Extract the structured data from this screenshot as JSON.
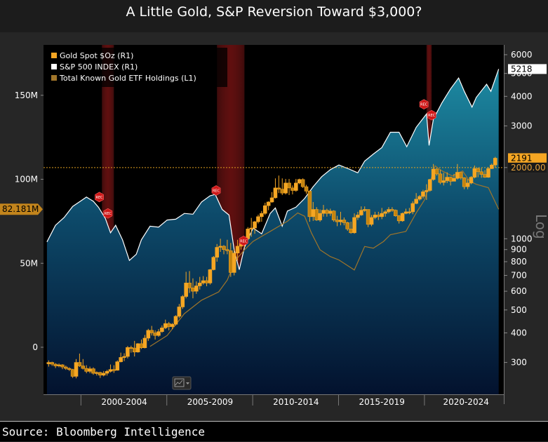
{
  "title": "A Little Gold, S&P Reversion Toward $3,000?",
  "source": "Source: Bloomberg Intelligence",
  "colors": {
    "gold": "#f5a623",
    "sp_line": "#ffffff",
    "etf": "#a0752a",
    "recession": "#8b1a1a",
    "bg": "#000000"
  },
  "icons": {
    "chart_type_button": "chart-type-icon"
  },
  "chart_data": {
    "type": "candlestick",
    "recession_label": "REC",
    "legend": [
      {
        "name": "Gold Spot $Oz (R1)",
        "color": "#f5a623"
      },
      {
        "name": "S&P 500 INDEX (R1)",
        "color": "#ffffff"
      },
      {
        "name": "Total Known Gold ETF Holdings (L1)",
        "color": "#a0752a"
      }
    ],
    "left_axis": {
      "ticks": [
        "150M",
        "100M",
        "50M",
        "0"
      ],
      "values": [
        150,
        100,
        50,
        0
      ],
      "range": [
        -28,
        180
      ],
      "highlight": "82.181M",
      "highlight_value": 82.181
    },
    "right_axis": {
      "scale": "log",
      "label": "Log",
      "ticks": [
        "6000",
        "5000",
        "4000",
        "3000",
        "2000.00",
        "1000",
        "900",
        "800",
        "700",
        "600",
        "500",
        "400",
        "300"
      ],
      "values": [
        6000,
        5000,
        4000,
        3000,
        2000,
        1000,
        900,
        800,
        700,
        600,
        500,
        400,
        300
      ],
      "range": [
        220,
        6600
      ],
      "markers": {
        "sp_last": "5218",
        "sp_last_value": 5218,
        "gold_last": "2191",
        "gold_last_value": 2191,
        "ref": "2000.00",
        "ref_value": 2000
      }
    },
    "x_axis": {
      "labels": [
        "2000-2004",
        "2005-2009",
        "2010-2014",
        "2015-2019",
        "2020-2024"
      ],
      "range": [
        1997.8,
        2024.6
      ]
    },
    "recessions": [
      [
        2001.2,
        2001.9
      ],
      [
        2007.9,
        2009.5
      ],
      [
        2020.1,
        2020.4
      ]
    ],
    "sp500": [
      [
        1998.0,
        970
      ],
      [
        1998.5,
        1140
      ],
      [
        1999.0,
        1230
      ],
      [
        1999.5,
        1370
      ],
      [
        2000.0,
        1450
      ],
      [
        2000.3,
        1500
      ],
      [
        2000.7,
        1440
      ],
      [
        2001.0,
        1360
      ],
      [
        2001.4,
        1220
      ],
      [
        2001.7,
        1060
      ],
      [
        2002.0,
        1140
      ],
      [
        2002.4,
        990
      ],
      [
        2002.8,
        810
      ],
      [
        2003.2,
        860
      ],
      [
        2003.5,
        990
      ],
      [
        2004.0,
        1130
      ],
      [
        2004.5,
        1120
      ],
      [
        2005.0,
        1200
      ],
      [
        2005.5,
        1210
      ],
      [
        2006.0,
        1280
      ],
      [
        2006.5,
        1270
      ],
      [
        2007.0,
        1430
      ],
      [
        2007.5,
        1520
      ],
      [
        2007.8,
        1540
      ],
      [
        2008.2,
        1330
      ],
      [
        2008.6,
        1260
      ],
      [
        2008.9,
        900
      ],
      [
        2009.2,
        740
      ],
      [
        2009.5,
        920
      ],
      [
        2010.0,
        1110
      ],
      [
        2010.5,
        1050
      ],
      [
        2011.0,
        1280
      ],
      [
        2011.3,
        1350
      ],
      [
        2011.7,
        1130
      ],
      [
        2012.0,
        1310
      ],
      [
        2012.5,
        1360
      ],
      [
        2013.0,
        1480
      ],
      [
        2013.5,
        1660
      ],
      [
        2014.0,
        1830
      ],
      [
        2014.5,
        1960
      ],
      [
        2015.0,
        2050
      ],
      [
        2015.6,
        1970
      ],
      [
        2016.1,
        1900
      ],
      [
        2016.5,
        2130
      ],
      [
        2017.0,
        2280
      ],
      [
        2017.5,
        2430
      ],
      [
        2018.0,
        2820
      ],
      [
        2018.5,
        2820
      ],
      [
        2018.95,
        2450
      ],
      [
        2019.5,
        2960
      ],
      [
        2020.1,
        3370
      ],
      [
        2020.25,
        2480
      ],
      [
        2020.5,
        3200
      ],
      [
        2021.0,
        3760
      ],
      [
        2021.5,
        4300
      ],
      [
        2021.97,
        4780
      ],
      [
        2022.3,
        4200
      ],
      [
        2022.75,
        3600
      ],
      [
        2023.0,
        3960
      ],
      [
        2023.6,
        4500
      ],
      [
        2023.85,
        4200
      ],
      [
        2024.3,
        5218
      ]
    ],
    "etf_holdings": [
      [
        2004.0,
        0.5
      ],
      [
        2005.0,
        7
      ],
      [
        2006.0,
        20
      ],
      [
        2007.0,
        28
      ],
      [
        2008.0,
        33
      ],
      [
        2008.5,
        40
      ],
      [
        2009.0,
        52
      ],
      [
        2009.5,
        58
      ],
      [
        2010.0,
        63
      ],
      [
        2010.5,
        66
      ],
      [
        2011.0,
        69
      ],
      [
        2011.5,
        72
      ],
      [
        2012.0,
        75
      ],
      [
        2012.6,
        80
      ],
      [
        2013.0,
        78
      ],
      [
        2013.4,
        68
      ],
      [
        2013.9,
        58
      ],
      [
        2014.5,
        54
      ],
      [
        2015.0,
        52
      ],
      [
        2015.9,
        46
      ],
      [
        2016.5,
        60
      ],
      [
        2017.0,
        59
      ],
      [
        2017.6,
        63
      ],
      [
        2018.0,
        67
      ],
      [
        2018.9,
        69
      ],
      [
        2019.5,
        80
      ],
      [
        2020.0,
        88
      ],
      [
        2020.6,
        108
      ],
      [
        2021.0,
        105
      ],
      [
        2021.6,
        102
      ],
      [
        2022.2,
        105
      ],
      [
        2022.6,
        99
      ],
      [
        2023.0,
        97
      ],
      [
        2023.7,
        95
      ],
      [
        2024.3,
        82.181
      ]
    ],
    "gold_candles": [
      [
        1998.1,
        296,
        300,
        306,
        288
      ],
      [
        1998.3,
        300,
        295,
        302,
        290
      ],
      [
        1998.5,
        295,
        290,
        298,
        284
      ],
      [
        1998.7,
        290,
        293,
        297,
        286
      ],
      [
        1998.9,
        293,
        287,
        295,
        281
      ],
      [
        1999.1,
        287,
        283,
        291,
        279
      ],
      [
        1999.3,
        283,
        280,
        286,
        276
      ],
      [
        1999.5,
        280,
        262,
        282,
        258
      ],
      [
        1999.7,
        262,
        300,
        310,
        257
      ],
      [
        1999.9,
        300,
        290,
        327,
        287
      ],
      [
        2000.1,
        290,
        283,
        310,
        280
      ],
      [
        2000.3,
        283,
        275,
        292,
        270
      ],
      [
        2000.5,
        275,
        282,
        288,
        270
      ],
      [
        2000.7,
        282,
        270,
        286,
        266
      ],
      [
        2000.9,
        270,
        272,
        275,
        264
      ],
      [
        2001.1,
        272,
        265,
        274,
        258
      ],
      [
        2001.3,
        265,
        270,
        276,
        262
      ],
      [
        2001.5,
        270,
        275,
        279,
        264
      ],
      [
        2001.7,
        275,
        280,
        294,
        272
      ],
      [
        2001.9,
        280,
        278,
        292,
        271
      ],
      [
        2002.1,
        278,
        302,
        306,
        277
      ],
      [
        2002.3,
        302,
        315,
        330,
        300
      ],
      [
        2002.5,
        315,
        318,
        328,
        304
      ],
      [
        2002.7,
        318,
        347,
        352,
        312
      ],
      [
        2002.9,
        347,
        345,
        353,
        330
      ],
      [
        2003.1,
        345,
        332,
        370,
        318
      ],
      [
        2003.3,
        332,
        360,
        362,
        330
      ],
      [
        2003.5,
        360,
        346,
        375,
        342
      ],
      [
        2003.7,
        346,
        380,
        392,
        344
      ],
      [
        2003.9,
        380,
        410,
        416,
        370
      ],
      [
        2004.1,
        410,
        400,
        428,
        390
      ],
      [
        2004.3,
        400,
        390,
        410,
        375
      ],
      [
        2004.5,
        390,
        405,
        415,
        385
      ],
      [
        2004.7,
        405,
        420,
        430,
        400
      ],
      [
        2004.9,
        420,
        438,
        455,
        415
      ],
      [
        2005.1,
        438,
        425,
        445,
        410
      ],
      [
        2005.3,
        425,
        435,
        440,
        415
      ],
      [
        2005.5,
        435,
        470,
        475,
        430
      ],
      [
        2005.7,
        470,
        515,
        530,
        462
      ],
      [
        2005.9,
        515,
        570,
        578,
        505
      ],
      [
        2006.1,
        570,
        650,
        725,
        560
      ],
      [
        2006.3,
        650,
        620,
        730,
        590
      ],
      [
        2006.5,
        620,
        600,
        680,
        560
      ],
      [
        2006.7,
        600,
        632,
        660,
        585
      ],
      [
        2006.9,
        632,
        650,
        690,
        610
      ],
      [
        2007.1,
        650,
        665,
        695,
        640
      ],
      [
        2007.3,
        665,
        650,
        690,
        630
      ],
      [
        2007.5,
        650,
        740,
        745,
        640
      ],
      [
        2007.7,
        740,
        835,
        845,
        735
      ],
      [
        2007.9,
        835,
        920,
        950,
        800
      ],
      [
        2008.1,
        920,
        930,
        1000,
        880
      ],
      [
        2008.3,
        930,
        900,
        940,
        860
      ],
      [
        2008.5,
        900,
        890,
        990,
        860
      ],
      [
        2008.7,
        890,
        720,
        960,
        690
      ],
      [
        2008.9,
        720,
        870,
        900,
        700
      ],
      [
        2009.1,
        870,
        930,
        990,
        810
      ],
      [
        2009.3,
        930,
        955,
        970,
        900
      ],
      [
        2009.5,
        955,
        1000,
        1010,
        920
      ],
      [
        2009.7,
        1000,
        1100,
        1120,
        990
      ],
      [
        2009.9,
        1100,
        1110,
        1225,
        1020
      ],
      [
        2010.1,
        1110,
        1180,
        1190,
        1050
      ],
      [
        2010.3,
        1180,
        1240,
        1265,
        1160
      ],
      [
        2010.5,
        1240,
        1280,
        1310,
        1180
      ],
      [
        2010.7,
        1280,
        1380,
        1420,
        1260
      ],
      [
        2010.9,
        1380,
        1430,
        1440,
        1320
      ],
      [
        2011.1,
        1430,
        1490,
        1575,
        1420
      ],
      [
        2011.3,
        1490,
        1640,
        1800,
        1480
      ],
      [
        2011.5,
        1640,
        1620,
        1850,
        1560
      ],
      [
        2011.7,
        1620,
        1560,
        1800,
        1530
      ],
      [
        2011.9,
        1560,
        1720,
        1790,
        1540
      ],
      [
        2012.1,
        1720,
        1640,
        1790,
        1530
      ],
      [
        2012.3,
        1640,
        1600,
        1680,
        1540
      ],
      [
        2012.5,
        1600,
        1720,
        1790,
        1580
      ],
      [
        2012.7,
        1720,
        1780,
        1795,
        1700
      ],
      [
        2012.9,
        1780,
        1660,
        1800,
        1640
      ],
      [
        2013.1,
        1660,
        1590,
        1690,
        1550
      ],
      [
        2013.3,
        1590,
        1240,
        1600,
        1180
      ],
      [
        2013.5,
        1240,
        1330,
        1430,
        1190
      ],
      [
        2013.7,
        1330,
        1200,
        1360,
        1190
      ],
      [
        2013.9,
        1200,
        1280,
        1330,
        1180
      ],
      [
        2014.1,
        1280,
        1320,
        1390,
        1240
      ],
      [
        2014.3,
        1320,
        1280,
        1340,
        1240
      ],
      [
        2014.5,
        1280,
        1310,
        1340,
        1250
      ],
      [
        2014.7,
        1310,
        1200,
        1320,
        1180
      ],
      [
        2014.9,
        1200,
        1180,
        1250,
        1130
      ],
      [
        2015.1,
        1180,
        1200,
        1300,
        1140
      ],
      [
        2015.3,
        1200,
        1170,
        1230,
        1140
      ],
      [
        2015.5,
        1170,
        1100,
        1180,
        1080
      ],
      [
        2015.7,
        1100,
        1060,
        1180,
        1050
      ],
      [
        2015.9,
        1060,
        1230,
        1280,
        1050
      ],
      [
        2016.1,
        1230,
        1260,
        1300,
        1200
      ],
      [
        2016.3,
        1260,
        1320,
        1370,
        1250
      ],
      [
        2016.5,
        1320,
        1330,
        1370,
        1300
      ],
      [
        2016.7,
        1330,
        1150,
        1330,
        1120
      ],
      [
        2016.9,
        1150,
        1230,
        1260,
        1130
      ],
      [
        2017.1,
        1230,
        1260,
        1300,
        1210
      ],
      [
        2017.3,
        1260,
        1240,
        1300,
        1200
      ],
      [
        2017.5,
        1240,
        1280,
        1350,
        1210
      ],
      [
        2017.7,
        1280,
        1300,
        1320,
        1240
      ],
      [
        2017.9,
        1300,
        1330,
        1360,
        1280
      ],
      [
        2018.1,
        1330,
        1320,
        1360,
        1300
      ],
      [
        2018.3,
        1320,
        1250,
        1330,
        1240
      ],
      [
        2018.5,
        1250,
        1190,
        1260,
        1160
      ],
      [
        2018.7,
        1190,
        1280,
        1290,
        1180
      ],
      [
        2018.9,
        1280,
        1300,
        1340,
        1270
      ],
      [
        2019.1,
        1300,
        1300,
        1350,
        1270
      ],
      [
        2019.3,
        1300,
        1410,
        1440,
        1270
      ],
      [
        2019.5,
        1410,
        1470,
        1560,
        1400
      ],
      [
        2019.7,
        1470,
        1510,
        1530,
        1450
      ],
      [
        2019.9,
        1510,
        1580,
        1610,
        1480
      ],
      [
        2020.1,
        1580,
        1600,
        1700,
        1460
      ],
      [
        2020.3,
        1600,
        1780,
        1790,
        1580
      ],
      [
        2020.5,
        1780,
        1970,
        2070,
        1760
      ],
      [
        2020.7,
        1970,
        1880,
        1990,
        1850
      ],
      [
        2020.9,
        1880,
        1730,
        1960,
        1700
      ],
      [
        2021.1,
        1730,
        1760,
        1900,
        1680
      ],
      [
        2021.3,
        1760,
        1820,
        1910,
        1720
      ],
      [
        2021.5,
        1820,
        1750,
        1830,
        1680
      ],
      [
        2021.7,
        1750,
        1800,
        1880,
        1750
      ],
      [
        2021.9,
        1800,
        1910,
        2070,
        1780
      ],
      [
        2022.1,
        1910,
        1810,
        1910,
        1780
      ],
      [
        2022.3,
        1810,
        1660,
        1820,
        1620
      ],
      [
        2022.5,
        1660,
        1720,
        1790,
        1620
      ],
      [
        2022.7,
        1720,
        1820,
        1840,
        1700
      ],
      [
        2022.9,
        1820,
        1980,
        2040,
        1800
      ],
      [
        2023.1,
        1980,
        1920,
        2000,
        1820
      ],
      [
        2023.3,
        1920,
        1870,
        1990,
        1810
      ],
      [
        2023.5,
        1870,
        1820,
        1950,
        1810
      ],
      [
        2023.7,
        1820,
        1980,
        2010,
        1810
      ],
      [
        2023.9,
        1980,
        2050,
        2080,
        1970
      ],
      [
        2024.1,
        2050,
        2191,
        2220,
        2000
      ]
    ]
  }
}
